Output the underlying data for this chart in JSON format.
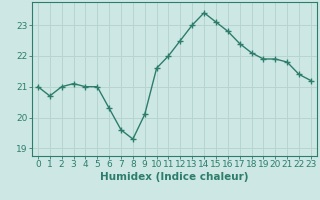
{
  "x": [
    0,
    1,
    2,
    3,
    4,
    5,
    6,
    7,
    8,
    9,
    10,
    11,
    12,
    13,
    14,
    15,
    16,
    17,
    18,
    19,
    20,
    21,
    22,
    23
  ],
  "y": [
    21.0,
    20.7,
    21.0,
    21.1,
    21.0,
    21.0,
    20.3,
    19.6,
    19.3,
    20.1,
    21.6,
    22.0,
    22.5,
    23.0,
    23.4,
    23.1,
    22.8,
    22.4,
    22.1,
    21.9,
    21.9,
    21.8,
    21.4,
    21.2
  ],
  "line_color": "#2d7d6d",
  "marker": "+",
  "marker_size": 4,
  "bg_color": "#cde8e4",
  "grid_color_major": "#b8d4d0",
  "grid_color_minor": "#c5deda",
  "axis_color": "#2d7d6d",
  "xlabel": "Humidex (Indice chaleur)",
  "xlim": [
    -0.5,
    23.5
  ],
  "ylim": [
    18.75,
    23.75
  ],
  "yticks": [
    19,
    20,
    21,
    22,
    23
  ],
  "xticks": [
    0,
    1,
    2,
    3,
    4,
    5,
    6,
    7,
    8,
    9,
    10,
    11,
    12,
    13,
    14,
    15,
    16,
    17,
    18,
    19,
    20,
    21,
    22,
    23
  ],
  "xtick_labels": [
    "0",
    "1",
    "2",
    "3",
    "4",
    "5",
    "6",
    "7",
    "8",
    "9",
    "10",
    "11",
    "12",
    "13",
    "14",
    "15",
    "16",
    "17",
    "18",
    "19",
    "20",
    "21",
    "22",
    "23"
  ],
  "xlabel_fontsize": 7.5,
  "tick_fontsize": 6.5,
  "line_width": 1.0
}
